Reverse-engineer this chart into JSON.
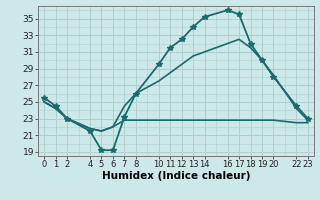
{
  "xlabel": "Humidex (Indice chaleur)",
  "background_color": "#cce8e8",
  "grid_color": "#b0d0d0",
  "line_color": "#1a6b6b",
  "x_ticks": [
    0,
    1,
    2,
    4,
    5,
    6,
    7,
    8,
    10,
    11,
    12,
    13,
    14,
    16,
    17,
    18,
    19,
    20,
    22,
    23
  ],
  "xlim": [
    -0.5,
    23.5
  ],
  "ylim": [
    18.5,
    36.5
  ],
  "yticks": [
    19,
    21,
    23,
    25,
    27,
    29,
    31,
    33,
    35
  ],
  "series": [
    {
      "x": [
        0,
        1,
        2,
        4,
        5,
        6,
        7,
        8,
        10,
        11,
        12,
        13,
        14,
        16,
        17,
        18,
        19,
        20,
        22,
        23
      ],
      "y": [
        25.5,
        24.5,
        23.0,
        21.5,
        19.2,
        19.2,
        23.2,
        26.0,
        29.5,
        31.5,
        32.5,
        34.0,
        35.2,
        36.0,
        35.5,
        32.0,
        30.0,
        28.0,
        24.5,
        23.0
      ],
      "marker": "*",
      "markersize": 4,
      "lw": 1.3
    },
    {
      "x": [
        0,
        1,
        2,
        4,
        5,
        6,
        7,
        8,
        10,
        11,
        12,
        13,
        14,
        16,
        17,
        18,
        19,
        20,
        22,
        23
      ],
      "y": [
        25.0,
        24.2,
        23.0,
        21.8,
        21.5,
        22.0,
        24.5,
        26.0,
        27.5,
        28.5,
        29.5,
        30.5,
        31.0,
        32.0,
        32.5,
        31.5,
        30.0,
        28.2,
        24.2,
        22.8
      ],
      "marker": "None",
      "markersize": 0,
      "lw": 1.2
    },
    {
      "x": [
        0,
        1,
        2,
        4,
        5,
        6,
        7,
        8,
        10,
        11,
        12,
        13,
        14,
        16,
        17,
        18,
        19,
        20,
        22,
        23
      ],
      "y": [
        25.0,
        24.2,
        23.0,
        21.8,
        21.5,
        22.0,
        22.8,
        22.8,
        22.8,
        22.8,
        22.8,
        22.8,
        22.8,
        22.8,
        22.8,
        22.8,
        22.8,
        22.8,
        22.5,
        22.5
      ],
      "marker": "None",
      "markersize": 0,
      "lw": 1.2
    }
  ]
}
